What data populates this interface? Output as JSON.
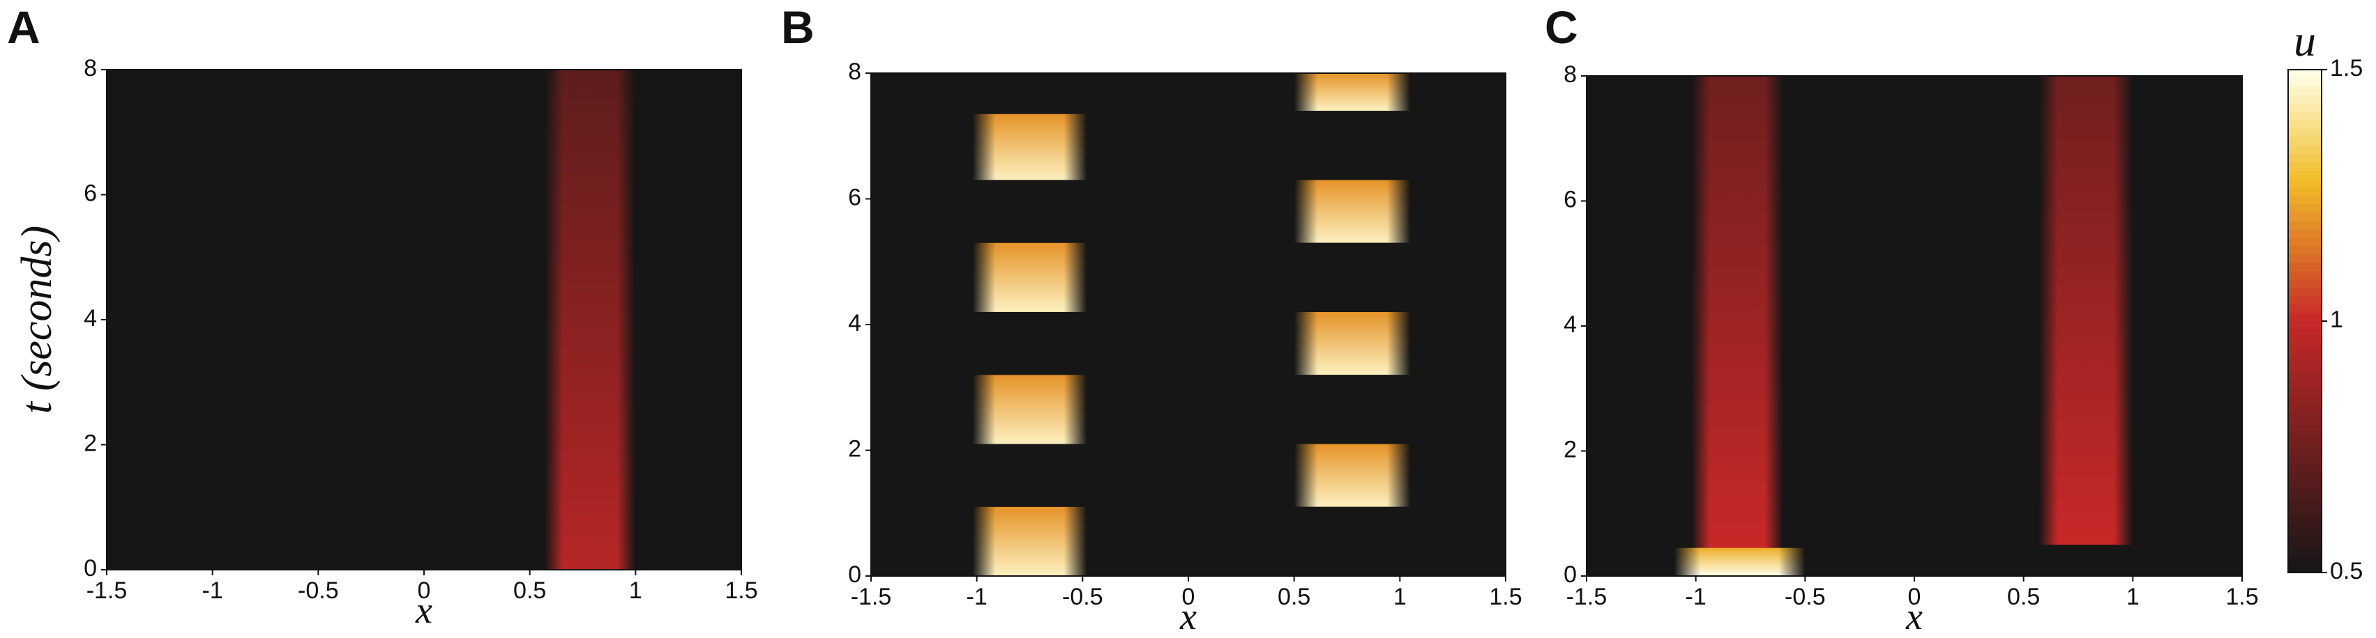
{
  "chart_data": [
    {
      "type": "heatmap",
      "panel": "A",
      "xlabel": "x",
      "ylabel": "t (seconds)",
      "xlim": [
        -1.5,
        1.5
      ],
      "xticks": [
        -1.5,
        -1,
        -0.5,
        0,
        0.5,
        1,
        1.5
      ],
      "ylim": [
        0,
        8
      ],
      "yticks": [
        0,
        2,
        4,
        6,
        8
      ],
      "regions": [
        {
          "x": [
            0.57,
            1.0
          ],
          "t": [
            0,
            8
          ],
          "u": 0.95
        }
      ]
    },
    {
      "type": "heatmap",
      "panel": "B",
      "xlabel": "x",
      "xlim": [
        -1.5,
        1.5
      ],
      "xticks": [
        -1.5,
        -1,
        -0.5,
        0,
        0.5,
        1,
        1.5
      ],
      "ylim": [
        0,
        8
      ],
      "yticks": [
        0,
        2,
        4,
        6,
        8
      ],
      "regions": [
        {
          "x": [
            -1.02,
            -0.48
          ],
          "t": [
            0,
            1.1
          ],
          "u": 1.45
        },
        {
          "x": [
            -1.02,
            -0.48
          ],
          "t": [
            2.1,
            3.2
          ],
          "u": 1.45
        },
        {
          "x": [
            -1.02,
            -0.48
          ],
          "t": [
            4.2,
            5.3
          ],
          "u": 1.45
        },
        {
          "x": [
            -1.02,
            -0.48
          ],
          "t": [
            6.3,
            7.35
          ],
          "u": 1.45
        },
        {
          "x": [
            0.5,
            1.05
          ],
          "t": [
            1.1,
            2.1
          ],
          "u": 1.45
        },
        {
          "x": [
            0.5,
            1.05
          ],
          "t": [
            3.2,
            4.2
          ],
          "u": 1.45
        },
        {
          "x": [
            0.5,
            1.05
          ],
          "t": [
            5.3,
            6.3
          ],
          "u": 1.45
        },
        {
          "x": [
            0.5,
            1.05
          ],
          "t": [
            7.4,
            8
          ],
          "u": 1.45
        }
      ]
    },
    {
      "type": "heatmap",
      "panel": "C",
      "xlabel": "x",
      "xlim": [
        -1.5,
        1.5
      ],
      "xticks": [
        -1.5,
        -1,
        -0.5,
        0,
        0.5,
        1,
        1.5
      ],
      "ylim": [
        0,
        8
      ],
      "yticks": [
        0,
        2,
        4,
        6,
        8
      ],
      "regions": [
        {
          "x": [
            -1.02,
            -0.6
          ],
          "t": [
            0.4,
            8
          ],
          "u": 1.0
        },
        {
          "x": [
            -1.1,
            -0.5
          ],
          "t": [
            0,
            0.45
          ],
          "u": 1.5
        },
        {
          "x": [
            0.57,
            1.0
          ],
          "t": [
            0.5,
            8
          ],
          "u": 1.0
        }
      ],
      "colorbar": {
        "label": "u",
        "lim": [
          0.5,
          1.5
        ],
        "ticks": [
          0.5,
          1,
          1.5
        ]
      }
    }
  ]
}
